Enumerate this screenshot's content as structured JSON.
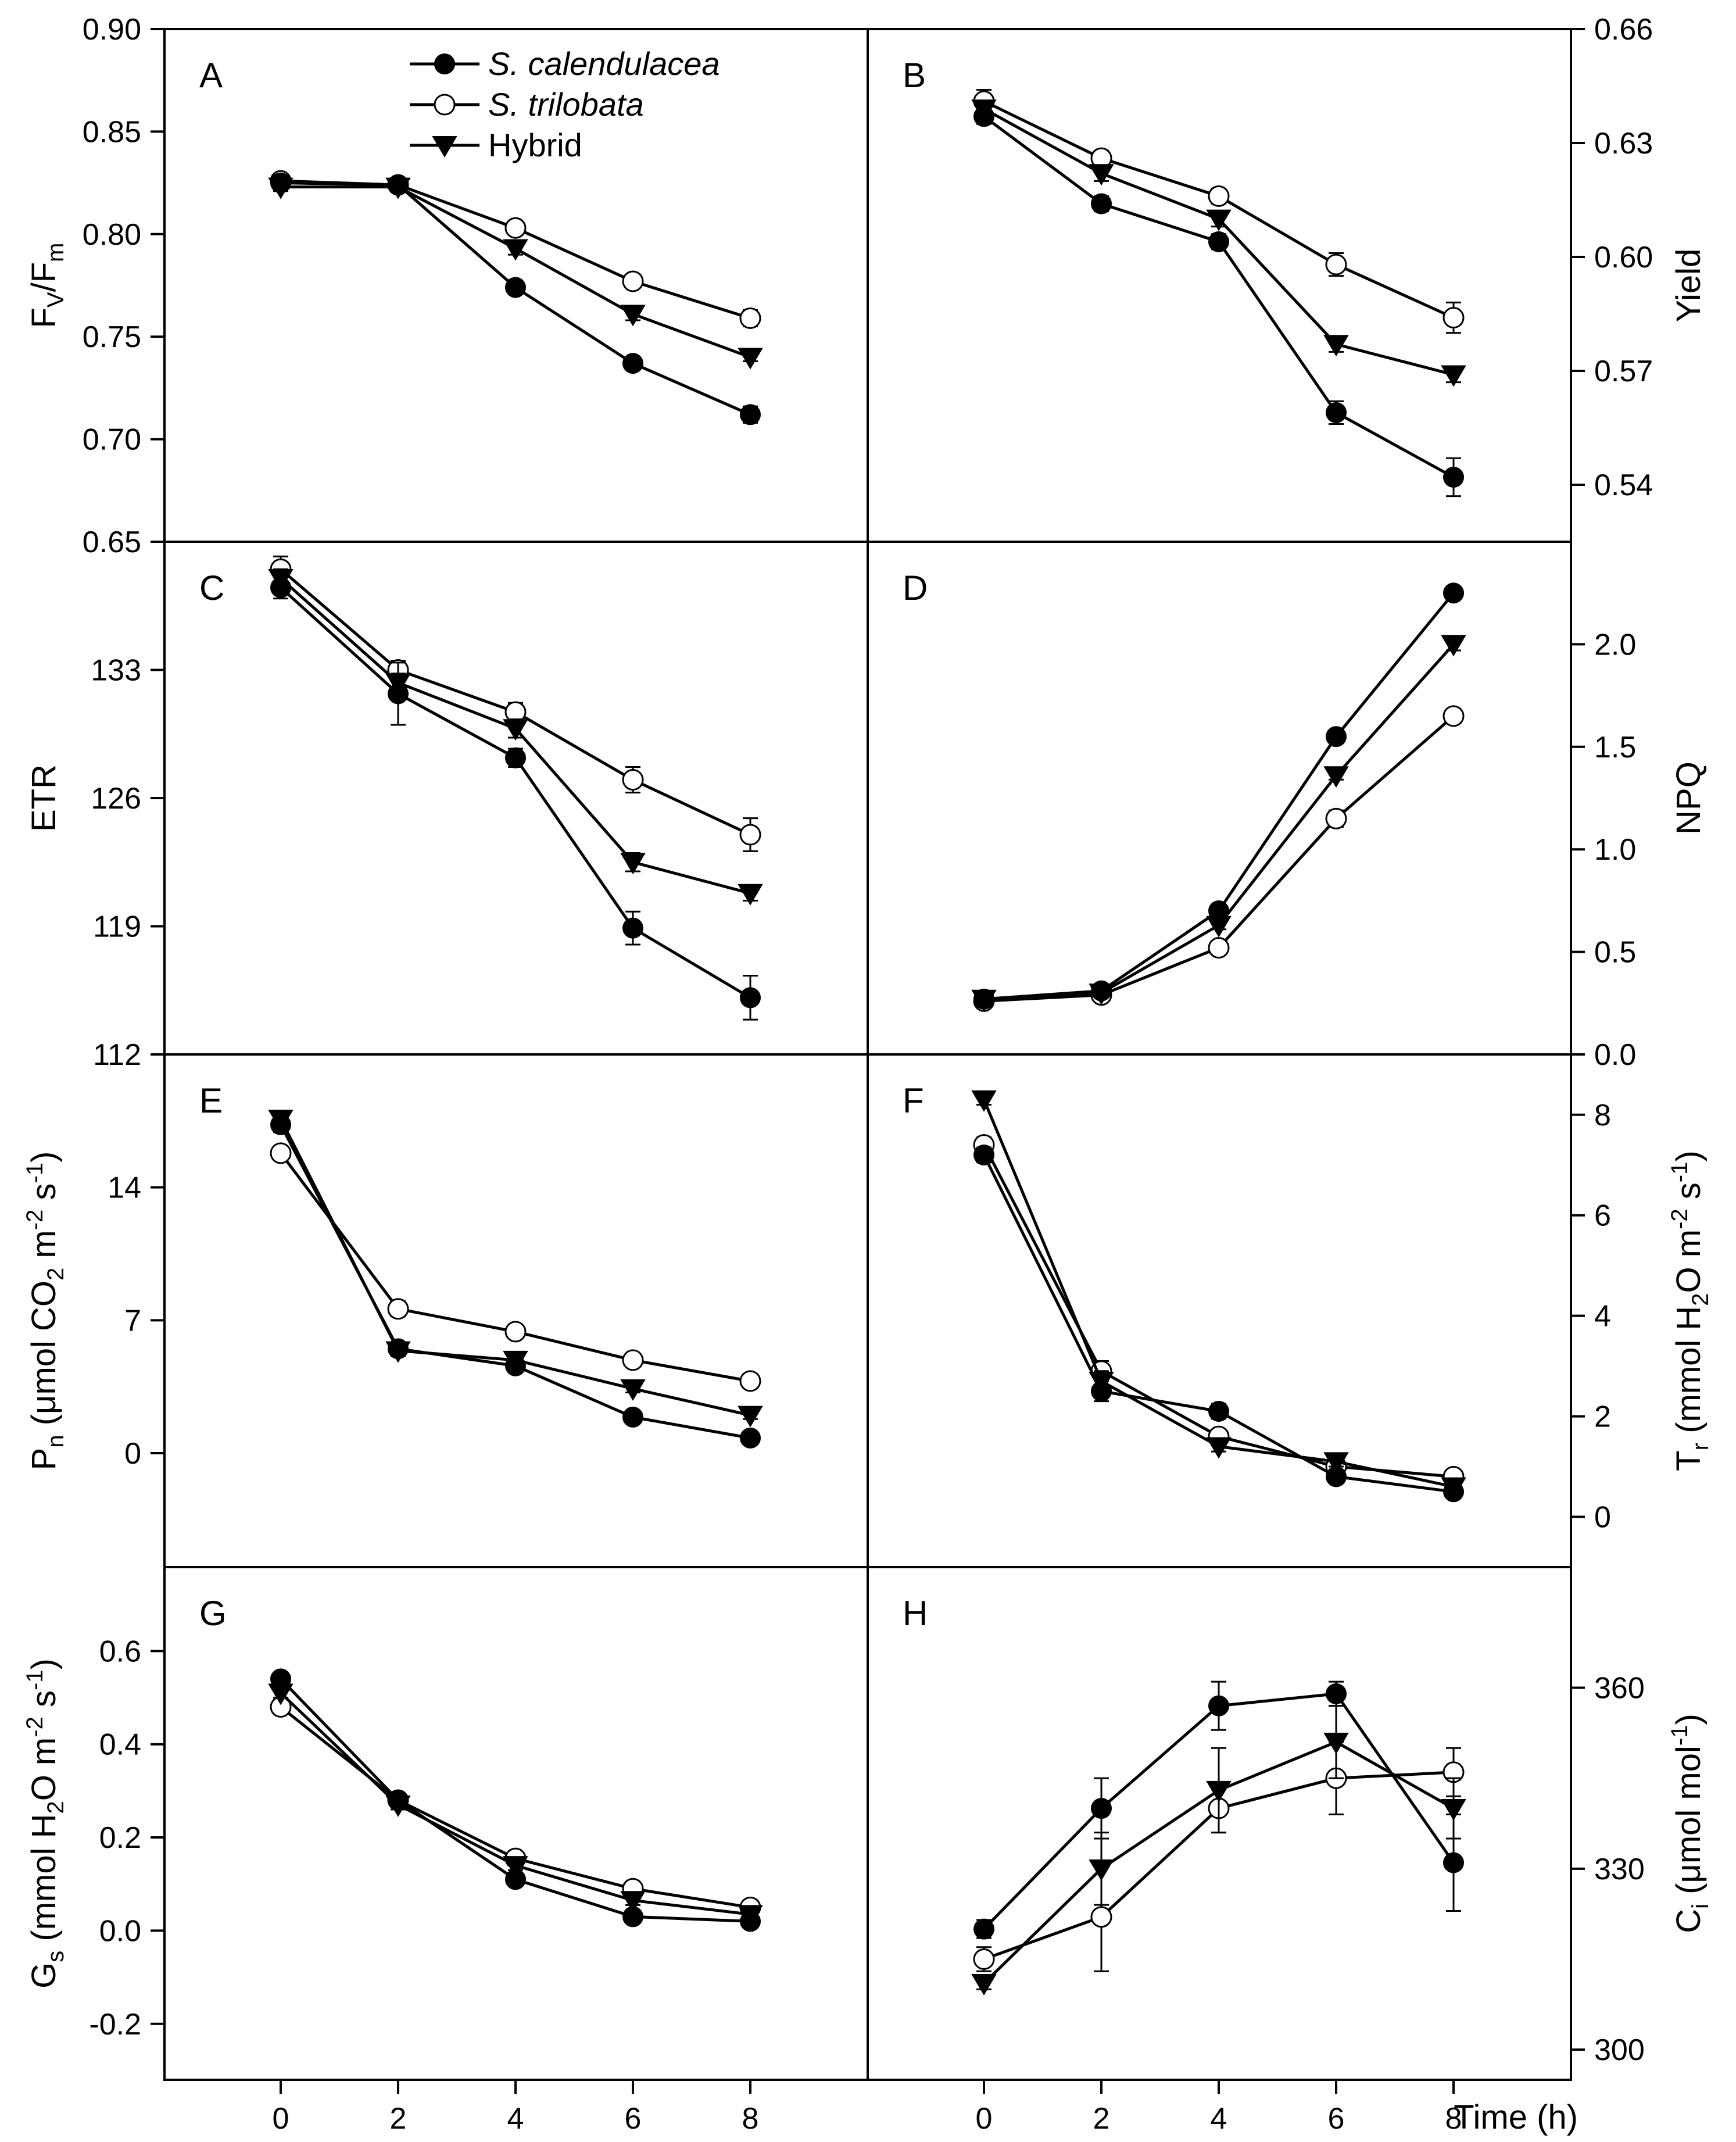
{
  "figure": {
    "x_axis_label": "Time (h)",
    "legend": [
      {
        "name": "S. calendulacea",
        "marker": "filled-circle",
        "italic": true
      },
      {
        "name": "S. trilobata",
        "marker": "open-circle",
        "italic": true
      },
      {
        "name": "Hybrid",
        "marker": "filled-triangle-down",
        "italic": false
      }
    ]
  },
  "chart_data": [
    {
      "type": "line",
      "panel": "A",
      "axis_side": "left",
      "ylabel": "Fv/Fm",
      "ylabel_main": "F",
      "ylabel_sub1": "V",
      "ylabel_mid": "/F",
      "ylabel_sub2": "m",
      "xlabel": "Time (h)",
      "x": [
        0,
        2,
        4,
        6,
        8
      ],
      "ylim": [
        0.65,
        0.9
      ],
      "yticks": [
        0.65,
        0.7,
        0.75,
        0.8,
        0.85,
        0.9
      ],
      "ytick_labels": [
        "0.65",
        "0.70",
        "0.75",
        "0.80",
        "0.85",
        "0.90"
      ],
      "series": [
        {
          "name": "S. calendulacea",
          "values": [
            0.825,
            0.824,
            0.774,
            0.737,
            0.712
          ],
          "errors": [
            0.002,
            0.002,
            0.002,
            0.002,
            0.004
          ]
        },
        {
          "name": "S. trilobata",
          "values": [
            0.826,
            0.824,
            0.803,
            0.777,
            0.759
          ],
          "errors": [
            0.002,
            0.002,
            0.003,
            0.002,
            0.004
          ]
        },
        {
          "name": "Hybrid",
          "values": [
            0.823,
            0.823,
            0.793,
            0.761,
            0.74
          ],
          "errors": [
            0.002,
            0.002,
            0.003,
            0.003,
            0.002
          ]
        }
      ]
    },
    {
      "type": "line",
      "panel": "B",
      "axis_side": "right",
      "ylabel": "Yield",
      "xlabel": "Time (h)",
      "x": [
        0,
        2,
        4,
        6,
        8
      ],
      "ylim": [
        0.525,
        0.66
      ],
      "yticks": [
        0.54,
        0.57,
        0.6,
        0.63,
        0.66
      ],
      "ytick_labels": [
        "0.54",
        "0.57",
        "0.60",
        "0.63",
        "0.66"
      ],
      "series": [
        {
          "name": "S. calendulacea",
          "values": [
            0.637,
            0.614,
            0.604,
            0.559,
            0.542
          ],
          "errors": [
            0.002,
            0.002,
            0.002,
            0.003,
            0.005
          ]
        },
        {
          "name": "S. trilobata",
          "values": [
            0.641,
            0.626,
            0.616,
            0.598,
            0.584
          ],
          "errors": [
            0.003,
            0.002,
            0.002,
            0.003,
            0.004
          ]
        },
        {
          "name": "Hybrid",
          "values": [
            0.639,
            0.622,
            0.61,
            0.577,
            0.569
          ],
          "errors": [
            0.002,
            0.002,
            0.002,
            0.002,
            0.002
          ]
        }
      ]
    },
    {
      "type": "line",
      "panel": "C",
      "axis_side": "left",
      "ylabel": "ETR",
      "xlabel": "Time (h)",
      "x": [
        0,
        2,
        4,
        6,
        8
      ],
      "ylim": [
        112,
        140
      ],
      "yticks": [
        112,
        119,
        126,
        133
      ],
      "ytick_labels": [
        "112",
        "119",
        "126",
        "133"
      ],
      "series": [
        {
          "name": "S. calendulacea",
          "values": [
            137.5,
            131.7,
            128.2,
            118.9,
            115.1
          ],
          "errors": [
            0.6,
            1.7,
            0.5,
            0.9,
            1.2
          ]
        },
        {
          "name": "S. trilobata",
          "values": [
            138.5,
            133.0,
            130.7,
            127.0,
            124.0
          ],
          "errors": [
            0.7,
            0.5,
            0.5,
            0.7,
            0.9
          ]
        },
        {
          "name": "Hybrid",
          "values": [
            138.0,
            132.3,
            129.8,
            122.5,
            120.8
          ],
          "errors": [
            0.5,
            0.5,
            0.5,
            0.5,
            0.4
          ]
        }
      ]
    },
    {
      "type": "line",
      "panel": "D",
      "axis_side": "right",
      "ylabel": "NPQ",
      "xlabel": "Time (h)",
      "x": [
        0,
        2,
        4,
        6,
        8
      ],
      "ylim": [
        0.0,
        2.5
      ],
      "yticks": [
        0.0,
        0.5,
        1.0,
        1.5,
        2.0
      ],
      "ytick_labels": [
        "0.0",
        "0.5",
        "1.0",
        "1.5",
        "2.0"
      ],
      "series": [
        {
          "name": "S. calendulacea",
          "values": [
            0.27,
            0.31,
            0.7,
            1.55,
            2.25
          ],
          "errors": [
            0.02,
            0.02,
            0.02,
            0.02,
            0.03
          ]
        },
        {
          "name": "S. trilobata",
          "values": [
            0.26,
            0.29,
            0.52,
            1.15,
            1.65
          ],
          "errors": [
            0.02,
            0.02,
            0.02,
            0.04,
            0.02
          ]
        },
        {
          "name": "Hybrid",
          "values": [
            0.27,
            0.3,
            0.63,
            1.36,
            2.0
          ],
          "errors": [
            0.02,
            0.02,
            0.02,
            0.02,
            0.03
          ]
        }
      ]
    },
    {
      "type": "line",
      "panel": "E",
      "axis_side": "left",
      "ylabel": "Pn (μmol CO2 m-2 s-1)",
      "ylabel_main": "P",
      "ylabel_sub1": "n",
      "ylabel_mid": " (μmol CO",
      "ylabel_sub2": "2",
      "ylabel_mid2": " m",
      "ylabel_sup1": "-2",
      "ylabel_mid3": " s",
      "ylabel_sup2": "-1",
      "ylabel_end": ")",
      "xlabel": "Time (h)",
      "x": [
        0,
        2,
        4,
        6,
        8
      ],
      "ylim": [
        -6,
        21
      ],
      "yticks": [
        0,
        7,
        14
      ],
      "ytick_labels": [
        "0",
        "7",
        "14"
      ],
      "series": [
        {
          "name": "S. calendulacea",
          "values": [
            17.3,
            5.5,
            4.6,
            1.9,
            0.8
          ],
          "errors": [
            0.4,
            0.3,
            0.3,
            0.2,
            0.2
          ]
        },
        {
          "name": "S. trilobata",
          "values": [
            15.8,
            7.6,
            6.4,
            4.9,
            3.8
          ],
          "errors": [
            0.3,
            0.4,
            0.3,
            0.2,
            0.2
          ]
        },
        {
          "name": "Hybrid",
          "values": [
            17.6,
            5.4,
            4.9,
            3.4,
            2.0
          ],
          "errors": [
            0.3,
            0.3,
            0.3,
            0.2,
            0.2
          ]
        }
      ]
    },
    {
      "type": "line",
      "panel": "F",
      "axis_side": "right",
      "ylabel": "Tr (mmol H2O m-2 s-1)",
      "ylabel_main": "T",
      "ylabel_sub1": "r",
      "ylabel_mid": " (mmol H",
      "ylabel_sub2": "2",
      "ylabel_mid2": "O m",
      "ylabel_sup1": "-2",
      "ylabel_mid3": " s",
      "ylabel_sup2": "-1",
      "ylabel_end": ")",
      "xlabel": "Time (h)",
      "x": [
        0,
        2,
        4,
        6,
        8
      ],
      "ylim": [
        -1,
        9.2
      ],
      "yticks": [
        0,
        2,
        4,
        6,
        8
      ],
      "ytick_labels": [
        "0",
        "2",
        "4",
        "6",
        "8"
      ],
      "series": [
        {
          "name": "S. calendulacea",
          "values": [
            7.2,
            2.5,
            2.1,
            0.8,
            0.5
          ],
          "errors": [
            0.15,
            0.2,
            0.15,
            0.1,
            0.1
          ]
        },
        {
          "name": "S. trilobata",
          "values": [
            7.4,
            2.9,
            1.6,
            1.0,
            0.8
          ],
          "errors": [
            0.15,
            0.2,
            0.1,
            0.1,
            0.1
          ]
        },
        {
          "name": "Hybrid",
          "values": [
            8.3,
            2.7,
            1.4,
            1.1,
            0.6
          ],
          "errors": [
            0.1,
            0.2,
            0.1,
            0.1,
            0.1
          ]
        }
      ]
    },
    {
      "type": "line",
      "panel": "G",
      "axis_side": "left",
      "ylabel": "Gs (mmol H2O m-2 s-1)",
      "ylabel_main": "G",
      "ylabel_sub1": "s",
      "ylabel_mid": " (mmol H",
      "ylabel_sub2": "2",
      "ylabel_mid2": "O m",
      "ylabel_sup1": "-2",
      "ylabel_mid3": " s",
      "ylabel_sup2": "-1",
      "ylabel_end": ")",
      "xlabel": "Time (h)",
      "x": [
        0,
        2,
        4,
        6,
        8
      ],
      "ylim": [
        -0.32,
        0.78
      ],
      "yticks": [
        -0.2,
        0.0,
        0.2,
        0.4,
        0.6
      ],
      "ytick_labels": [
        "-0.2",
        "0.0",
        "0.2",
        "0.4",
        "0.6"
      ],
      "series": [
        {
          "name": "S. calendulacea",
          "values": [
            0.54,
            0.28,
            0.11,
            0.03,
            0.02
          ],
          "errors": [
            0.01,
            0.01,
            0.01,
            0.01,
            0.01
          ]
        },
        {
          "name": "S. trilobata",
          "values": [
            0.48,
            0.28,
            0.155,
            0.09,
            0.05
          ],
          "errors": [
            0.015,
            0.01,
            0.01,
            0.01,
            0.01
          ]
        },
        {
          "name": "Hybrid",
          "values": [
            0.51,
            0.27,
            0.14,
            0.065,
            0.035
          ],
          "errors": [
            0.01,
            0.01,
            0.01,
            0.01,
            0.01
          ]
        }
      ]
    },
    {
      "type": "line",
      "panel": "H",
      "axis_side": "right",
      "ylabel": "Ci (μmol mol-1)",
      "ylabel_main": "C",
      "ylabel_sub1": "i",
      "ylabel_mid": " (μmol mol",
      "ylabel_sup1": "-1",
      "ylabel_end": ")",
      "xlabel": "Time (h)",
      "x": [
        0,
        2,
        4,
        6,
        8
      ],
      "ylim": [
        295,
        380
      ],
      "yticks": [
        300,
        330,
        360
      ],
      "ytick_labels": [
        "300",
        "330",
        "360"
      ],
      "series": [
        {
          "name": "S. calendulacea",
          "values": [
            320,
            340,
            357,
            359,
            331
          ],
          "errors": [
            1.5,
            5,
            4,
            2,
            8
          ]
        },
        {
          "name": "S. trilobata",
          "values": [
            315,
            322,
            340,
            345,
            346
          ],
          "errors": [
            2,
            9,
            4,
            6,
            4
          ]
        },
        {
          "name": "Hybrid",
          "values": [
            311,
            330,
            343,
            351,
            340
          ],
          "errors": [
            1,
            6,
            7,
            6,
            5
          ]
        }
      ]
    }
  ]
}
